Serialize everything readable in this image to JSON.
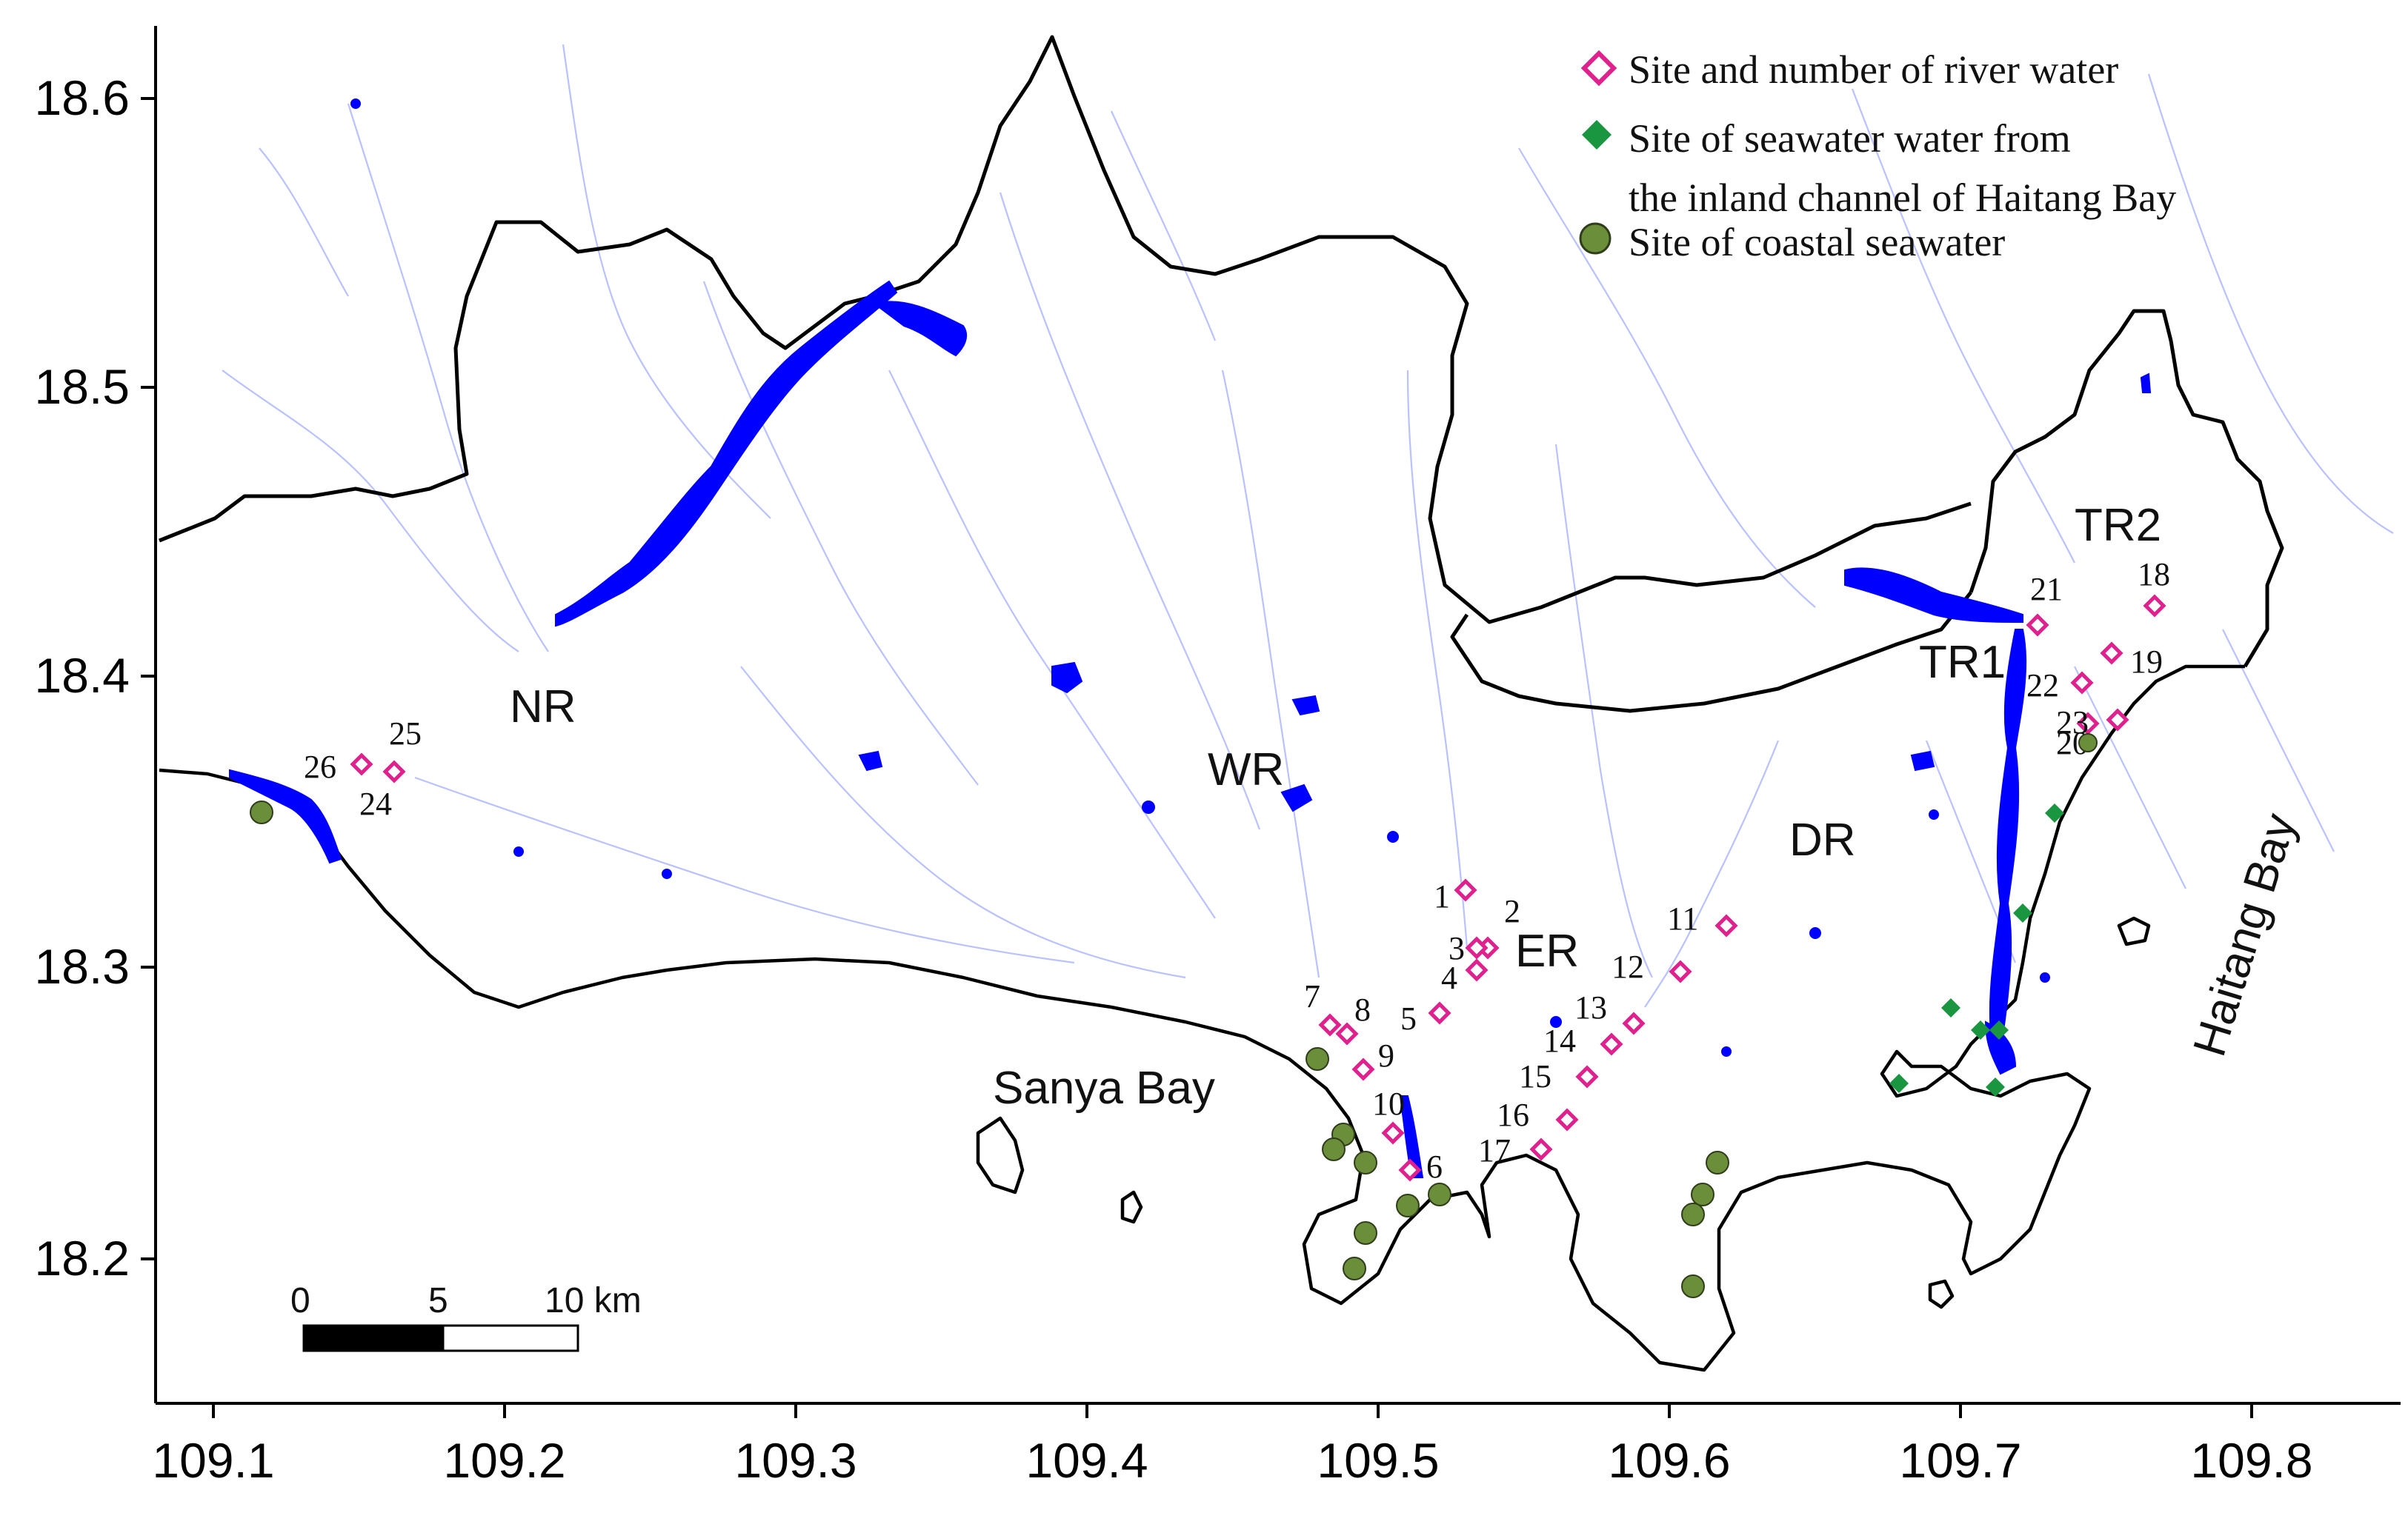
{
  "axes": {
    "x_ticks": [
      "109.1",
      "109.2",
      "109.3",
      "109.4",
      "109.5",
      "109.6",
      "109.7",
      "109.8"
    ],
    "y_ticks": [
      "18.6",
      "18.5",
      "18.4",
      "18.3",
      "18.2"
    ]
  },
  "legend": {
    "river": "Site and number of river water",
    "channel_line1": "Site of seawater water from",
    "channel_line2": "the inland channel of Haitang Bay",
    "coastal": "Site of coastal seawater"
  },
  "regions": {
    "nr": "NR",
    "wr": "WR",
    "er": "ER",
    "dr": "DR",
    "tr1": "TR1",
    "tr2": "TR2",
    "sanya_bay": "Sanya Bay",
    "haitang_bay": "Haitang Bay"
  },
  "scalebar": {
    "zero": "0",
    "mid": "5",
    "end": "10 km"
  },
  "site_labels": [
    "1",
    "2",
    "3",
    "4",
    "5",
    "6",
    "7",
    "8",
    "9",
    "10",
    "11",
    "12",
    "13",
    "14",
    "15",
    "16",
    "17",
    "18",
    "19",
    "20",
    "21",
    "22",
    "23",
    "24",
    "25",
    "26"
  ],
  "colors": {
    "river_site": "#e0208c",
    "channel_site": "#1a9641",
    "coastal_site": "#6b8e3a",
    "water": "#0000ff",
    "stream": "#b9c2ff"
  }
}
